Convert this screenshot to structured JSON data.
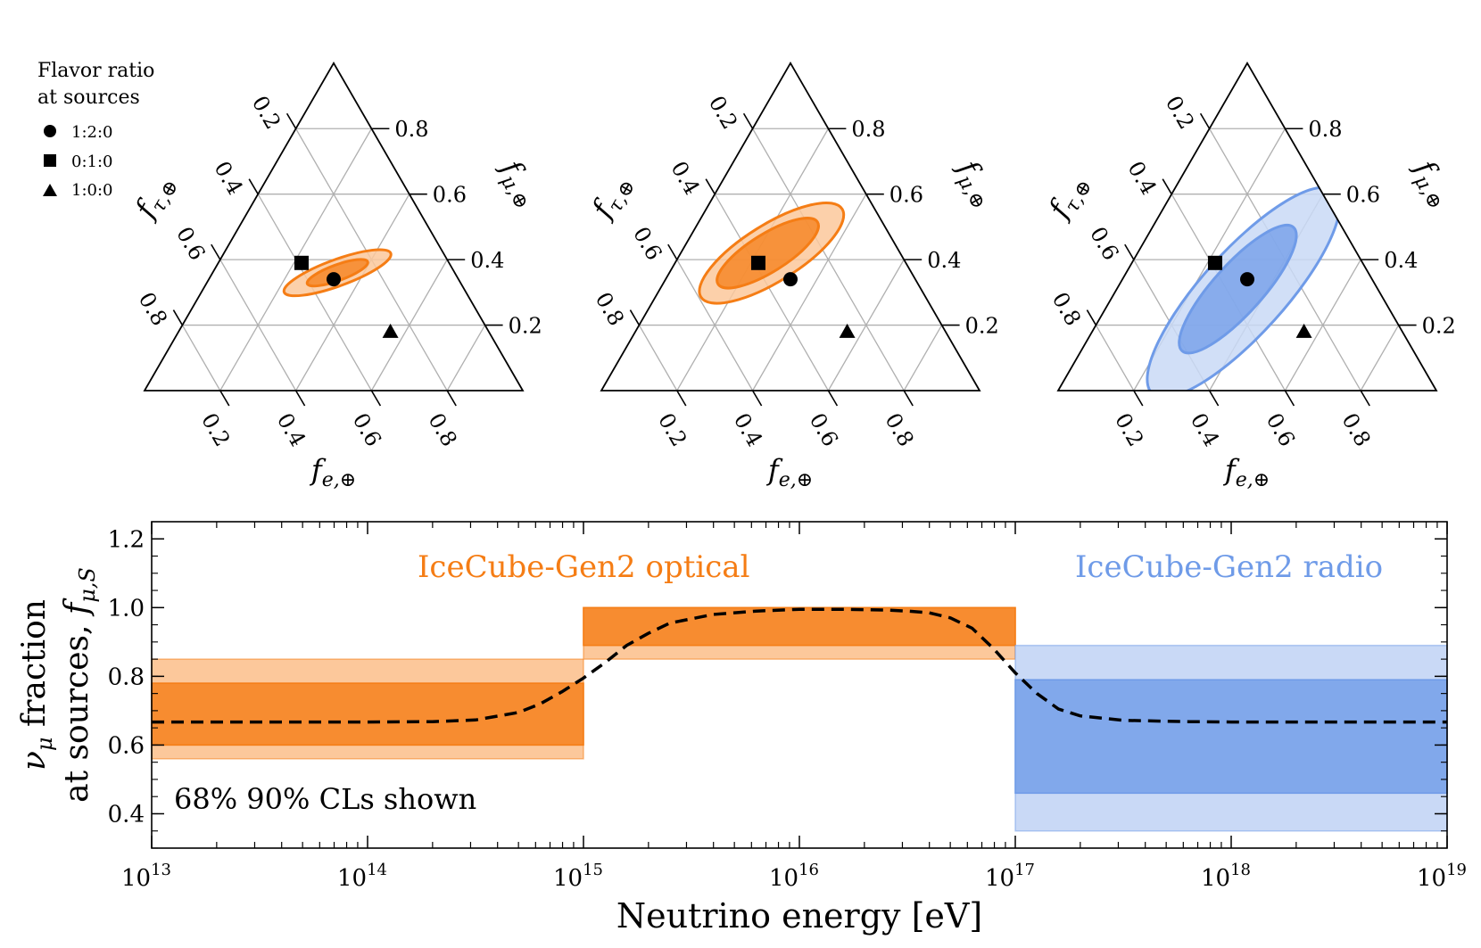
{
  "legend": {
    "title_line1": "Flavor ratio",
    "title_line2": "at sources",
    "items": [
      {
        "marker": "circle",
        "label": "1:2:0"
      },
      {
        "marker": "square",
        "label": "0:1:0"
      },
      {
        "marker": "triangle",
        "label": "1:0:0"
      }
    ]
  },
  "colors": {
    "orange": "#f57d15",
    "orange_light": "#fcc89b",
    "blue": "#6f9be8",
    "blue_light": "#c9d9f6",
    "grid": "#b0b0b0",
    "dashed": "#000000"
  },
  "chart_data": [
    {
      "type": "ternary",
      "axes": {
        "bottom": "f",
        "bottom_sub": "e,⊕",
        "left": "f",
        "left_sub": "τ,⊕",
        "right": "f",
        "right_sub": "μ,⊕"
      },
      "ticks": [
        "0.2",
        "0.4",
        "0.6",
        "0.8"
      ],
      "points": [
        {
          "marker": "circle",
          "fe": 0.33,
          "fmu": 0.34,
          "ftau": 0.33
        },
        {
          "marker": "square",
          "fe": 0.22,
          "fmu": 0.39,
          "ftau": 0.39
        },
        {
          "marker": "triangle",
          "fe": 0.56,
          "fmu": 0.18,
          "ftau": 0.26
        }
      ],
      "regions": [
        {
          "cl": "90%",
          "color": "orange",
          "center": [
            0.33,
            0.36
          ],
          "semi": [
            0.15,
            0.035
          ],
          "angle_deg": 20
        },
        {
          "cl": "68%",
          "color": "orange",
          "center": [
            0.33,
            0.36
          ],
          "semi": [
            0.085,
            0.021
          ],
          "angle_deg": 20
        }
      ]
    },
    {
      "type": "ternary",
      "axes": {
        "bottom": "f",
        "bottom_sub": "e,⊕",
        "left": "f",
        "left_sub": "τ,⊕",
        "right": "f",
        "right_sub": "μ,⊕"
      },
      "ticks": [
        "0.2",
        "0.4",
        "0.6",
        "0.8"
      ],
      "points": [
        {
          "marker": "circle",
          "fe": 0.33,
          "fmu": 0.34,
          "ftau": 0.33
        },
        {
          "marker": "square",
          "fe": 0.22,
          "fmu": 0.39,
          "ftau": 0.39
        },
        {
          "marker": "triangle",
          "fe": 0.56,
          "fmu": 0.18,
          "ftau": 0.26
        }
      ],
      "regions": [
        {
          "cl": "90%",
          "color": "orange",
          "center": [
            0.24,
            0.42
          ],
          "semi": [
            0.22,
            0.075
          ],
          "angle_deg": 32
        },
        {
          "cl": "68%",
          "color": "orange",
          "center": [
            0.23,
            0.42
          ],
          "semi": [
            0.155,
            0.05
          ],
          "angle_deg": 32
        }
      ]
    },
    {
      "type": "ternary",
      "axes": {
        "bottom": "f",
        "bottom_sub": "e,⊕",
        "left": "f",
        "left_sub": "τ,⊕",
        "right": "f",
        "right_sub": "μ,⊕"
      },
      "ticks": [
        "0.2",
        "0.4",
        "0.6",
        "0.8"
      ],
      "points": [
        {
          "marker": "circle",
          "fe": 0.33,
          "fmu": 0.34,
          "ftau": 0.33
        },
        {
          "marker": "square",
          "fe": 0.22,
          "fmu": 0.39,
          "ftau": 0.39
        },
        {
          "marker": "triangle",
          "fe": 0.56,
          "fmu": 0.18,
          "ftau": 0.26
        }
      ],
      "regions": [
        {
          "cl": "90%",
          "color": "blue",
          "center": [
            0.34,
            0.3
          ],
          "semi": [
            0.36,
            0.11
          ],
          "angle_deg": 48
        },
        {
          "cl": "68%",
          "color": "blue",
          "center": [
            0.32,
            0.31
          ],
          "semi": [
            0.22,
            0.065
          ],
          "angle_deg": 48
        }
      ]
    },
    {
      "type": "area",
      "xscale": "log",
      "xlim": [
        10000000000000.0,
        1e+19
      ],
      "ylim": [
        0.3,
        1.25
      ],
      "xlabel": "Neutrino energy [eV]",
      "ylabel_line1_pre": "ν",
      "ylabel_line1_sub": "μ",
      "ylabel_line1_post": " fraction",
      "ylabel_line2_pre": "at sources, ",
      "ylabel_line2_f": "f",
      "ylabel_line2_sub": "μ,S",
      "xticks": [
        {
          "value": 10000000000000.0,
          "base": "10",
          "exp": "13"
        },
        {
          "value": 100000000000000.0,
          "base": "10",
          "exp": "14"
        },
        {
          "value": 1000000000000000.0,
          "base": "10",
          "exp": "15"
        },
        {
          "value": 1e+16,
          "base": "10",
          "exp": "16"
        },
        {
          "value": 1e+17,
          "base": "10",
          "exp": "17"
        },
        {
          "value": 1e+18,
          "base": "10",
          "exp": "18"
        },
        {
          "value": 1e+19,
          "base": "10",
          "exp": "19"
        }
      ],
      "yticks": [
        {
          "value": 0.4,
          "label": "0.4"
        },
        {
          "value": 0.6,
          "label": "0.6"
        },
        {
          "value": 0.8,
          "label": "0.8"
        },
        {
          "value": 1.0,
          "label": "1.0"
        },
        {
          "value": 1.2,
          "label": "1.2"
        }
      ],
      "bands": [
        {
          "detector": "optical",
          "x": [
            10000000000000.0,
            1000000000000000.0
          ],
          "cl90": [
            0.56,
            0.85
          ],
          "cl68": [
            0.6,
            0.78
          ],
          "color": "orange"
        },
        {
          "detector": "optical",
          "x": [
            1000000000000000.0,
            1e+17
          ],
          "cl90": [
            0.85,
            1.0
          ],
          "cl68": [
            0.89,
            1.0
          ],
          "color": "orange"
        },
        {
          "detector": "radio",
          "x": [
            1e+17,
            1e+19
          ],
          "cl90": [
            0.35,
            0.89
          ],
          "cl68": [
            0.46,
            0.79
          ],
          "color": "blue"
        }
      ],
      "curve": {
        "style": "dashed",
        "log10E": [
          13.0,
          13.5,
          14.0,
          14.3,
          14.5,
          14.7,
          14.8,
          14.9,
          15.0,
          15.1,
          15.2,
          15.3,
          15.4,
          15.6,
          15.8,
          16.0,
          16.2,
          16.4,
          16.5,
          16.6,
          16.7,
          16.8,
          16.9,
          17.0,
          17.1,
          17.2,
          17.3,
          17.5,
          17.8,
          18.0,
          18.5,
          19.0
        ],
        "f": [
          0.667,
          0.667,
          0.667,
          0.668,
          0.673,
          0.695,
          0.72,
          0.755,
          0.795,
          0.84,
          0.89,
          0.925,
          0.955,
          0.98,
          0.99,
          0.995,
          0.995,
          0.993,
          0.99,
          0.985,
          0.97,
          0.94,
          0.88,
          0.81,
          0.75,
          0.705,
          0.685,
          0.672,
          0.668,
          0.667,
          0.667,
          0.667
        ]
      },
      "annotations": [
        {
          "text": "IceCube-Gen2 optical",
          "color": "orange"
        },
        {
          "text": "IceCube-Gen2 radio",
          "color": "blue"
        },
        {
          "text": "68% 90% CLs shown",
          "color": "black"
        }
      ]
    }
  ]
}
